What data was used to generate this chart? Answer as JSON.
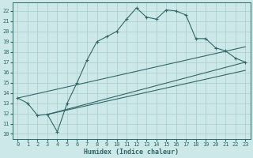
{
  "xlabel": "Humidex (Indice chaleur)",
  "ylabel": "",
  "xlim": [
    -0.5,
    23.5
  ],
  "ylim": [
    9.5,
    22.8
  ],
  "yticks": [
    10,
    11,
    12,
    13,
    14,
    15,
    16,
    17,
    18,
    19,
    20,
    21,
    22
  ],
  "xticks": [
    0,
    1,
    2,
    3,
    4,
    5,
    6,
    7,
    8,
    9,
    10,
    11,
    12,
    13,
    14,
    15,
    16,
    17,
    18,
    19,
    20,
    21,
    22,
    23
  ],
  "bg_color": "#cce8e8",
  "grid_color": "#aacccc",
  "line_color": "#336666",
  "main_x": [
    0,
    1,
    2,
    3,
    4,
    5,
    6,
    7,
    8,
    9,
    10,
    11,
    12,
    13,
    14,
    15,
    16,
    17,
    18,
    19,
    20,
    21,
    22,
    23
  ],
  "main_y": [
    13.5,
    13.0,
    11.8,
    11.9,
    10.2,
    13.0,
    15.0,
    17.2,
    19.0,
    19.5,
    20.0,
    21.2,
    22.3,
    21.4,
    21.2,
    22.1,
    22.0,
    21.6,
    19.3,
    19.3,
    18.4,
    18.1,
    17.4,
    17.0
  ],
  "line2_x": [
    0,
    23
  ],
  "line2_y": [
    13.5,
    18.5
  ],
  "line3_x": [
    3,
    23
  ],
  "line3_y": [
    11.9,
    17.0
  ],
  "line4_x": [
    3,
    23
  ],
  "line4_y": [
    11.9,
    16.2
  ]
}
